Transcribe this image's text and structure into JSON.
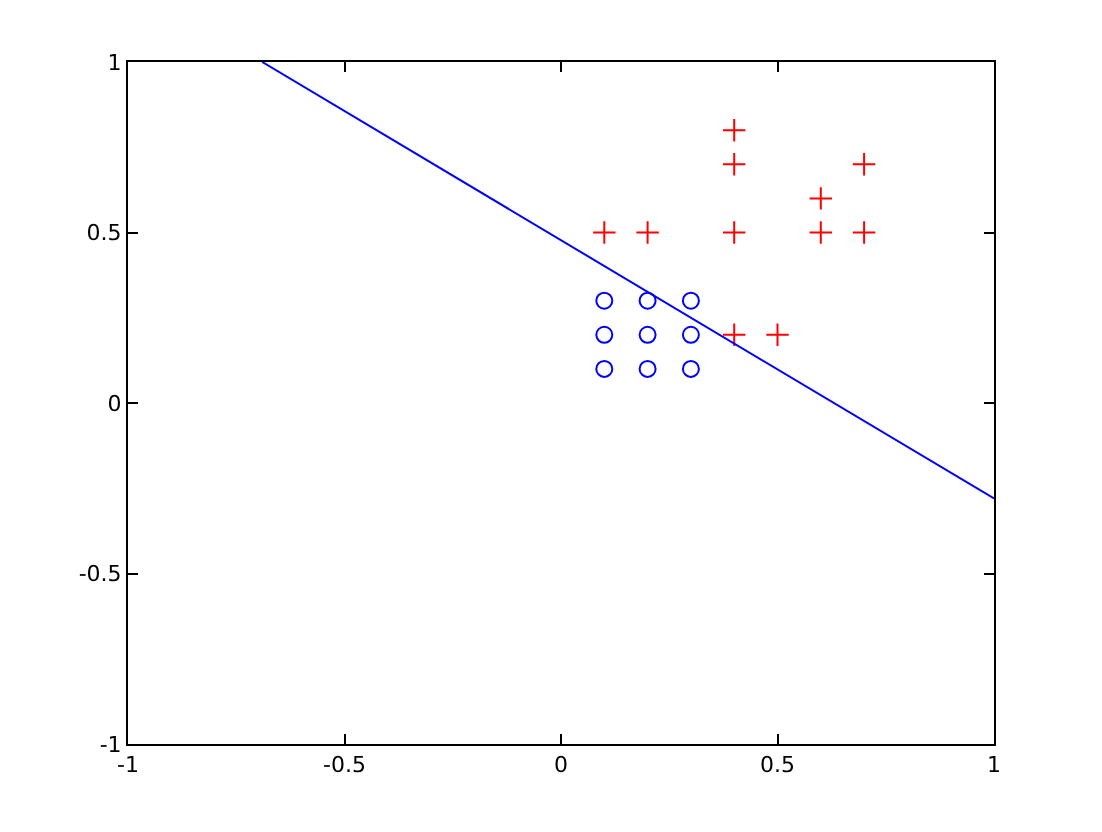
{
  "chart_data": {
    "type": "scatter",
    "xlim": [
      -1,
      1
    ],
    "ylim": [
      -1,
      1
    ],
    "xticks": [
      -1,
      -0.5,
      0,
      0.5,
      1
    ],
    "yticks": [
      -1,
      -0.5,
      0,
      0.5,
      1
    ],
    "series": [
      {
        "marker": "circle",
        "color": "#0000ff",
        "x": [
          0.1,
          0.2,
          0.3,
          0.1,
          0.2,
          0.3,
          0.1,
          0.2,
          0.3
        ],
        "values": [
          0.1,
          0.1,
          0.1,
          0.2,
          0.2,
          0.2,
          0.3,
          0.3,
          0.3
        ]
      },
      {
        "marker": "cross",
        "color": "#ff0000",
        "x": [
          0.1,
          0.2,
          0.4,
          0.4,
          0.4,
          0.6,
          0.6,
          0.7,
          0.7,
          0.4,
          0.5
        ],
        "values": [
          0.5,
          0.5,
          0.8,
          0.7,
          0.5,
          0.6,
          0.5,
          0.7,
          0.5,
          0.2,
          0.2
        ]
      },
      {
        "type": "line",
        "marker": "none",
        "color": "#0000ff",
        "x": [
          -0.69,
          1
        ],
        "values": [
          1,
          -0.28
        ]
      }
    ]
  }
}
